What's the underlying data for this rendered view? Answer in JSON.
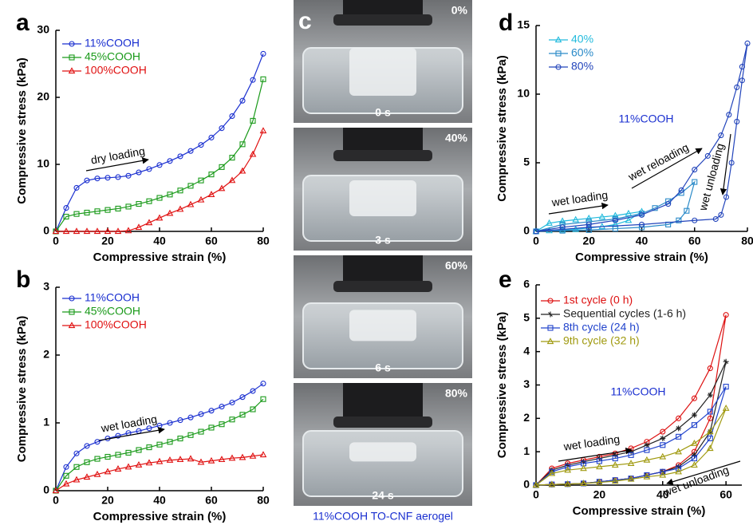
{
  "chart_data": [
    {
      "type": "line",
      "panel": "a",
      "xlabel": "Compressive strain (%)",
      "ylabel": "Compressive stress (kPa)",
      "x": [
        0,
        4,
        8,
        12,
        16,
        20,
        24,
        28,
        32,
        36,
        40,
        44,
        48,
        52,
        56,
        60,
        64,
        68,
        72,
        76,
        80
      ],
      "xlim": [
        0,
        80
      ],
      "xticks": [
        0,
        20,
        40,
        60,
        80
      ],
      "ylim": [
        0,
        30
      ],
      "yticks": [
        0,
        10,
        20,
        30
      ],
      "series": [
        {
          "name": "11%COOH",
          "color": "#1a2fd0",
          "marker": "circle",
          "values": [
            0,
            3.5,
            6.5,
            7.6,
            7.9,
            8.0,
            8.1,
            8.3,
            8.8,
            9.3,
            9.9,
            10.5,
            11.2,
            12.0,
            12.9,
            14.0,
            15.4,
            17.2,
            19.5,
            22.6,
            26.5
          ]
        },
        {
          "name": "45%COOH",
          "color": "#1a9a1a",
          "marker": "square",
          "values": [
            0,
            2.2,
            2.6,
            2.8,
            3.0,
            3.2,
            3.4,
            3.7,
            4.1,
            4.5,
            5.0,
            5.5,
            6.1,
            6.8,
            7.6,
            8.5,
            9.6,
            11.0,
            13.0,
            16.5,
            22.7
          ]
        },
        {
          "name": "100%COOH",
          "color": "#e01010",
          "marker": "triangle",
          "values": [
            0,
            0,
            0,
            0,
            0,
            0,
            0,
            0.1,
            0.6,
            1.3,
            2.0,
            2.7,
            3.3,
            4.0,
            4.7,
            5.5,
            6.4,
            7.6,
            9.0,
            11.5,
            15.0
          ]
        }
      ],
      "annotations": [
        "dry loading"
      ]
    },
    {
      "type": "line",
      "panel": "b",
      "xlabel": "Compressive strain (%)",
      "ylabel": "Compressive stress (kPa)",
      "x": [
        0,
        4,
        8,
        12,
        16,
        20,
        24,
        28,
        32,
        36,
        40,
        44,
        48,
        52,
        56,
        60,
        64,
        68,
        72,
        76,
        80
      ],
      "xlim": [
        0,
        80
      ],
      "xticks": [
        0,
        20,
        40,
        60,
        80
      ],
      "ylim": [
        0,
        3
      ],
      "yticks": [
        0,
        1,
        2,
        3
      ],
      "series": [
        {
          "name": "11%COOH",
          "color": "#1a2fd0",
          "marker": "circle",
          "values": [
            0,
            0.35,
            0.55,
            0.66,
            0.72,
            0.77,
            0.81,
            0.85,
            0.88,
            0.92,
            0.96,
            1.0,
            1.04,
            1.08,
            1.13,
            1.18,
            1.24,
            1.3,
            1.38,
            1.47,
            1.58
          ]
        },
        {
          "name": "45%COOH",
          "color": "#1a9a1a",
          "marker": "square",
          "values": [
            0,
            0.22,
            0.35,
            0.42,
            0.47,
            0.5,
            0.53,
            0.56,
            0.6,
            0.64,
            0.68,
            0.72,
            0.77,
            0.82,
            0.87,
            0.93,
            0.98,
            1.05,
            1.12,
            1.2,
            1.35
          ]
        },
        {
          "name": "100%COOH",
          "color": "#e01010",
          "marker": "triangle",
          "values": [
            0,
            0.1,
            0.16,
            0.2,
            0.24,
            0.28,
            0.32,
            0.35,
            0.38,
            0.41,
            0.43,
            0.45,
            0.46,
            0.47,
            0.42,
            0.44,
            0.46,
            0.48,
            0.49,
            0.51,
            0.53
          ]
        }
      ],
      "annotations": [
        "wet loading"
      ]
    },
    {
      "type": "line",
      "panel": "d",
      "xlabel": "Compressive strain (%)",
      "ylabel": "Compressive stress (kPa)",
      "xlim": [
        0,
        80
      ],
      "xticks": [
        0,
        20,
        40,
        60,
        80
      ],
      "ylim": [
        0,
        15
      ],
      "yticks": [
        0,
        5,
        10,
        15
      ],
      "series": [
        {
          "name": "40%",
          "color": "#22bbdd",
          "marker": "triangle",
          "x": [
            0,
            5,
            10,
            15,
            20,
            25,
            30,
            35,
            40,
            35,
            30,
            25,
            20,
            15,
            10,
            5,
            0
          ],
          "values": [
            0,
            0.6,
            0.75,
            0.85,
            0.95,
            1.05,
            1.15,
            1.3,
            1.45,
            0.8,
            0.5,
            0.35,
            0.25,
            0.15,
            0.1,
            0.05,
            0
          ]
        },
        {
          "name": "60%",
          "color": "#2a8ac8",
          "marker": "square",
          "x": [
            0,
            10,
            20,
            30,
            40,
            45,
            50,
            55,
            60,
            57,
            54,
            50,
            40,
            30,
            20,
            10,
            0
          ],
          "values": [
            0,
            0.5,
            0.7,
            0.9,
            1.3,
            1.7,
            2.2,
            2.8,
            3.6,
            1.5,
            0.8,
            0.5,
            0.3,
            0.2,
            0.1,
            0.05,
            0
          ]
        },
        {
          "name": "80%",
          "color": "#2244bb",
          "marker": "circle",
          "x": [
            0,
            10,
            20,
            30,
            40,
            50,
            55,
            60,
            65,
            70,
            73,
            76,
            78,
            80,
            78,
            76,
            74,
            72,
            70,
            68,
            60,
            40,
            20,
            0
          ],
          "values": [
            0,
            0.3,
            0.5,
            0.8,
            1.2,
            2.0,
            3.0,
            4.5,
            5.5,
            7.0,
            8.5,
            10.5,
            12,
            13.7,
            11,
            8,
            5,
            2.5,
            1.2,
            0.9,
            0.8,
            0.5,
            0.3,
            0
          ]
        }
      ],
      "annotations": [
        "11%COOH",
        "wet loading",
        "wet reloading",
        "wet unloading"
      ]
    },
    {
      "type": "line",
      "panel": "e",
      "xlabel": "Compressive strain (%)",
      "ylabel": "Compressive stress (kPa)",
      "xlim": [
        0,
        65
      ],
      "xticks": [
        0,
        20,
        40,
        60
      ],
      "ylim": [
        0,
        6
      ],
      "yticks": [
        0,
        1,
        2,
        3,
        4,
        5,
        6
      ],
      "series": [
        {
          "name": "1st cycle (0 h)",
          "color": "#dd1111",
          "marker": "circle",
          "x": [
            0,
            5,
            10,
            15,
            20,
            25,
            30,
            35,
            40,
            45,
            50,
            55,
            60,
            55,
            50,
            45,
            40,
            35,
            30,
            25,
            20,
            15,
            10,
            5,
            0
          ],
          "values": [
            0,
            0.5,
            0.65,
            0.75,
            0.85,
            0.95,
            1.1,
            1.3,
            1.6,
            2.0,
            2.6,
            3.5,
            5.1,
            2.0,
            1.0,
            0.6,
            0.4,
            0.3,
            0.2,
            0.15,
            0.1,
            0.05,
            0.03,
            0.02,
            0
          ]
        },
        {
          "name": "Sequential cycles (1-6 h)",
          "color": "#222222",
          "marker": "plus",
          "x": [
            0,
            5,
            10,
            15,
            20,
            25,
            30,
            35,
            40,
            45,
            50,
            55,
            60,
            55,
            50,
            45,
            40,
            35,
            30,
            25,
            20,
            15,
            10,
            5,
            0
          ],
          "values": [
            0,
            0.45,
            0.6,
            0.7,
            0.8,
            0.9,
            1.0,
            1.2,
            1.4,
            1.7,
            2.1,
            2.7,
            3.7,
            1.6,
            0.9,
            0.55,
            0.4,
            0.3,
            0.2,
            0.15,
            0.1,
            0.05,
            0.03,
            0.02,
            0
          ]
        },
        {
          "name": "8th cycle (24 h)",
          "color": "#2244cc",
          "marker": "square",
          "x": [
            0,
            5,
            10,
            15,
            20,
            25,
            30,
            35,
            40,
            45,
            50,
            55,
            60,
            55,
            50,
            45,
            40,
            35,
            30,
            25,
            20,
            15,
            10,
            5,
            0
          ],
          "values": [
            0,
            0.4,
            0.55,
            0.65,
            0.72,
            0.8,
            0.9,
            1.05,
            1.2,
            1.45,
            1.8,
            2.2,
            2.95,
            1.4,
            0.8,
            0.5,
            0.4,
            0.3,
            0.2,
            0.15,
            0.1,
            0.05,
            0.03,
            0.02,
            0
          ]
        },
        {
          "name": "9th cycle (32 h)",
          "color": "#a09a10",
          "marker": "triangle",
          "x": [
            0,
            5,
            10,
            15,
            20,
            25,
            30,
            35,
            40,
            45,
            50,
            55,
            60,
            55,
            50,
            45,
            40,
            35,
            30,
            25,
            20,
            15,
            10,
            5,
            0
          ],
          "values": [
            0,
            0.35,
            0.45,
            0.5,
            0.55,
            0.6,
            0.65,
            0.75,
            0.85,
            1.0,
            1.25,
            1.6,
            2.3,
            1.1,
            0.6,
            0.4,
            0.3,
            0.25,
            0.18,
            0.12,
            0.08,
            0.05,
            0.03,
            0.02,
            0
          ]
        }
      ],
      "annotations": [
        "11%COOH",
        "wet loading",
        "wet unloading"
      ]
    }
  ],
  "photo_panel": {
    "label": "c",
    "frames": [
      {
        "strain": "0%",
        "time": "0 s"
      },
      {
        "strain": "40%",
        "time": "3 s"
      },
      {
        "strain": "60%",
        "time": "6 s"
      },
      {
        "strain": "80%",
        "time": "24 s"
      }
    ],
    "caption": "11%COOH TO-CNF aerogel"
  }
}
